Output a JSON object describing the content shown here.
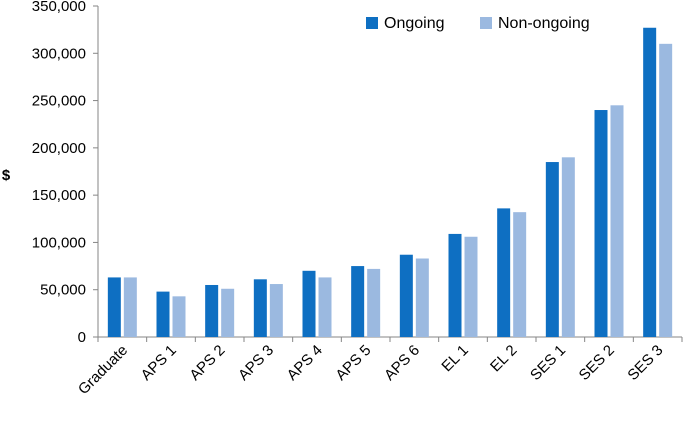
{
  "chart_data": {
    "type": "bar",
    "ylabel": "$",
    "ylim": [
      0,
      350000
    ],
    "ytick_step": 50000,
    "ytick_labels": [
      "0",
      "50,000",
      "100,000",
      "150,000",
      "200,000",
      "250,000",
      "300,000",
      "350,000"
    ],
    "grid": false,
    "legend_position": "top-right",
    "categories": [
      "Graduate",
      "APS 1",
      "APS 2",
      "APS 3",
      "APS 4",
      "APS 5",
      "APS 6",
      "EL 1",
      "EL 2",
      "SES 1",
      "SES 2",
      "SES 3"
    ],
    "series": [
      {
        "name": "Ongoing",
        "color": "#0E6FC2",
        "values": [
          63000,
          48000,
          55000,
          61000,
          70000,
          75000,
          87000,
          109000,
          136000,
          185000,
          240000,
          327000
        ]
      },
      {
        "name": "Non-ongoing",
        "color": "#9BB9E0",
        "values": [
          63000,
          43000,
          51000,
          56000,
          63000,
          72000,
          83000,
          106000,
          132000,
          190000,
          245000,
          310000
        ]
      }
    ]
  }
}
